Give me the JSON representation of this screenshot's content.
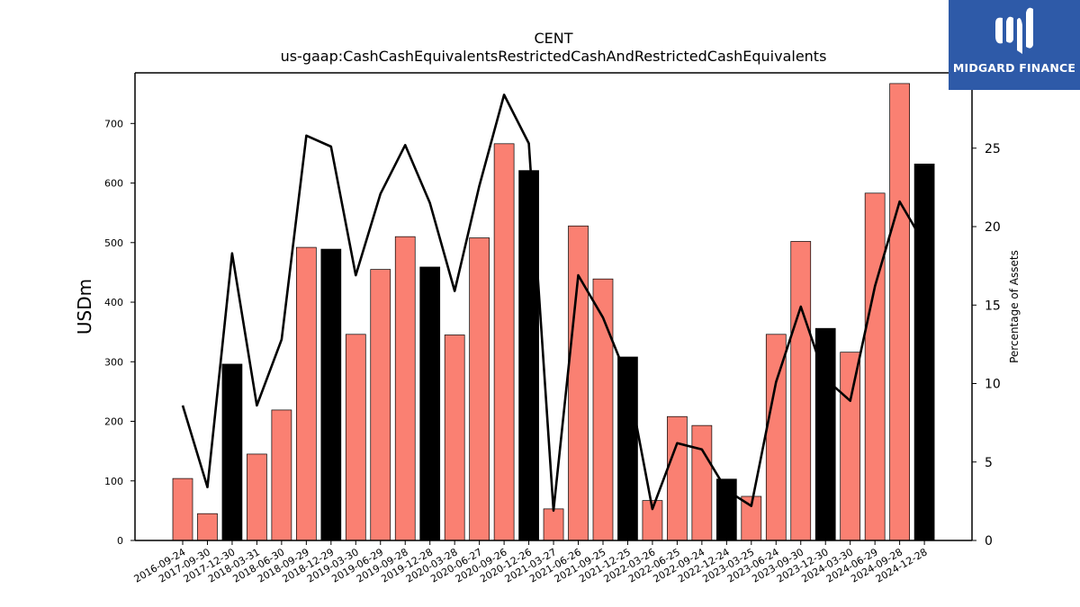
{
  "chart_data": {
    "type": "bar",
    "title": "CENT",
    "subtitle": "us-gaap:CashCashEquivalentsRestrictedCashAndRestrictedCashEquivalents",
    "ylabel": "USDm",
    "y2label": "Percentage of Assets",
    "ylim": [
      0,
      785
    ],
    "y2lim": [
      0,
      29.8
    ],
    "yticks": [
      0,
      100,
      200,
      300,
      400,
      500,
      600,
      700
    ],
    "y2ticks": [
      0,
      5,
      10,
      15,
      20,
      25
    ],
    "grid": false,
    "categories": [
      "2016-09-24",
      "2017-09-30",
      "2017-12-30",
      "2018-03-31",
      "2018-06-30",
      "2018-09-29",
      "2018-12-29",
      "2019-03-30",
      "2019-06-29",
      "2019-09-28",
      "2019-12-28",
      "2020-03-28",
      "2020-06-27",
      "2020-09-26",
      "2020-12-26",
      "2021-03-27",
      "2021-06-26",
      "2021-09-25",
      "2021-12-25",
      "2022-03-26",
      "2022-06-25",
      "2022-09-24",
      "2022-12-24",
      "2023-03-25",
      "2023-06-24",
      "2023-09-30",
      "2023-12-30",
      "2024-03-30",
      "2024-06-29",
      "2024-09-28",
      "2024-12-28"
    ],
    "series": [
      {
        "kind": "bar",
        "axis": "left",
        "values": [
          104,
          45,
          296,
          145,
          219,
          492,
          489,
          346,
          455,
          510,
          459,
          345,
          508,
          666,
          621,
          53,
          528,
          439,
          308,
          67,
          208,
          193,
          103,
          74,
          346,
          502,
          356,
          316,
          583,
          767,
          632
        ],
        "colors": [
          "#fa8072",
          "#fa8072",
          "#000000",
          "#fa8072",
          "#fa8072",
          "#fa8072",
          "#000000",
          "#fa8072",
          "#fa8072",
          "#fa8072",
          "#000000",
          "#fa8072",
          "#fa8072",
          "#fa8072",
          "#000000",
          "#fa8072",
          "#fa8072",
          "#fa8072",
          "#000000",
          "#fa8072",
          "#fa8072",
          "#fa8072",
          "#000000",
          "#fa8072",
          "#fa8072",
          "#fa8072",
          "#000000",
          "#fa8072",
          "#fa8072",
          "#fa8072",
          "#000000"
        ]
      },
      {
        "kind": "line",
        "axis": "right",
        "color": "#000000",
        "values": [
          8.6,
          3.4,
          18.3,
          8.6,
          12.8,
          25.8,
          25.1,
          16.9,
          22.1,
          25.2,
          21.5,
          15.9,
          22.6,
          28.4,
          25.3,
          1.9,
          16.9,
          14.2,
          10.3,
          2.0,
          6.2,
          5.8,
          3.2,
          2.2,
          10.1,
          14.9,
          10.3,
          8.9,
          16.2,
          21.6,
          18.9
        ]
      }
    ]
  },
  "logo": {
    "text": "MIDGARD FINANCE"
  }
}
